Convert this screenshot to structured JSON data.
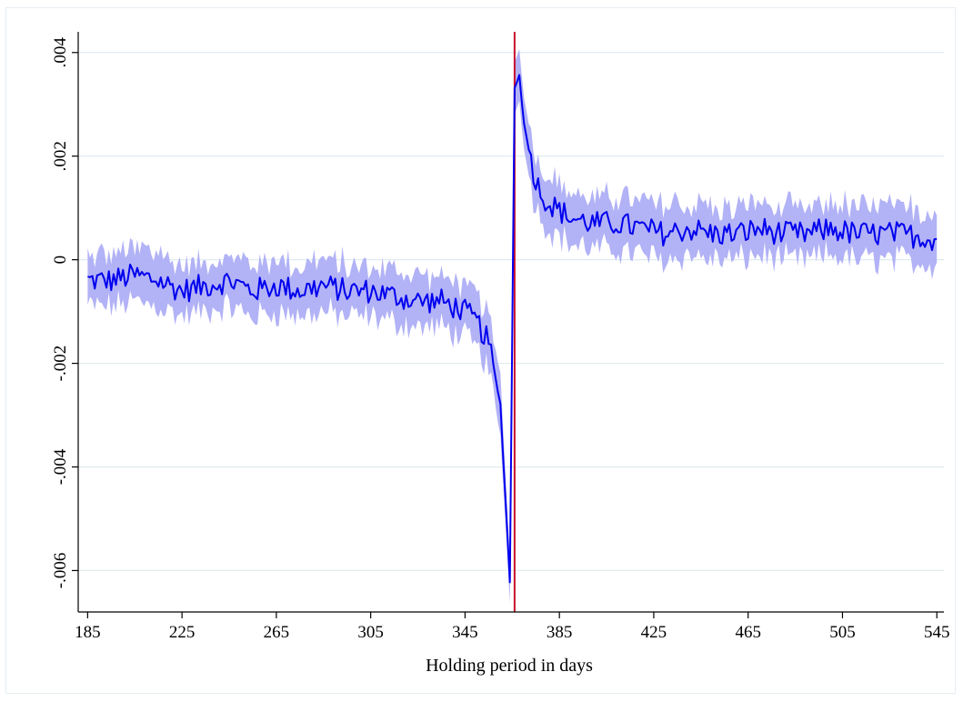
{
  "chart_data": {
    "type": "line",
    "title": "",
    "xlabel": "Holding period in days",
    "ylabel": "",
    "xlim": [
      181,
      548
    ],
    "ylim": [
      -0.0068,
      0.0044
    ],
    "x_ticks": [
      185,
      225,
      265,
      305,
      345,
      385,
      425,
      465,
      505,
      545
    ],
    "x_tick_labels": [
      "185",
      "225",
      "265",
      "305",
      "345",
      "385",
      "425",
      "465",
      "505",
      "545"
    ],
    "y_ticks": [
      -0.006,
      -0.004,
      -0.002,
      0,
      0.002,
      0.004
    ],
    "y_tick_labels": [
      "-.006",
      "-.004",
      "-.002",
      "0",
      ".002",
      ".004"
    ],
    "grid": "horizontal",
    "vertical_reference_line": 366,
    "colors": {
      "line": "#0000ee",
      "ci_band": "#aaaaf5",
      "reference_line": "#c8102e",
      "grid": "#e0ecf0"
    },
    "series": [
      {
        "x": [
          185,
          195,
          205,
          215,
          225,
          235,
          245,
          255,
          265,
          275,
          285,
          295,
          305,
          315,
          325,
          335,
          345,
          350,
          355,
          360,
          364,
          366,
          368,
          370,
          375,
          380,
          390,
          400,
          410,
          420,
          430,
          440,
          450,
          460,
          470,
          480,
          490,
          500,
          510,
          520,
          530,
          545
        ],
        "y": [
          -0.0004,
          -0.0004,
          -0.0003,
          -0.0004,
          -0.0006,
          -0.0005,
          -0.0004,
          -0.0006,
          -0.0005,
          -0.0006,
          -0.0005,
          -0.0006,
          -0.0006,
          -0.0007,
          -0.0008,
          -0.0008,
          -0.001,
          -0.0012,
          -0.0016,
          -0.0028,
          -0.0062,
          0.0033,
          0.0036,
          0.0026,
          0.0015,
          0.0011,
          0.0008,
          0.0007,
          0.0007,
          0.0006,
          0.0005,
          0.0006,
          0.0005,
          0.0005,
          0.0006,
          0.0005,
          0.0005,
          0.0006,
          0.0005,
          0.0005,
          0.0005,
          0.0004
        ],
        "ci_lower": [
          -0.0009,
          -0.0009,
          -0.0008,
          -0.0009,
          -0.0011,
          -0.001,
          -0.0009,
          -0.0011,
          -0.001,
          -0.0011,
          -0.001,
          -0.0011,
          -0.0011,
          -0.0012,
          -0.0013,
          -0.0013,
          -0.0015,
          -0.0017,
          -0.0021,
          -0.0034,
          -0.0066,
          0.0028,
          0.0031,
          0.0021,
          0.001,
          0.0006,
          0.0003,
          0.0002,
          0.0002,
          0.0001,
          0.0,
          0.0001,
          0.0,
          0.0,
          0.0001,
          0.0,
          0.0,
          0.0001,
          0.0,
          0.0,
          0.0,
          -0.0001
        ],
        "ci_upper": [
          0.0001,
          0.0001,
          0.0002,
          0.0001,
          -0.0001,
          0.0,
          0.0001,
          -0.0001,
          0.0,
          -0.0001,
          0.0,
          -0.0001,
          -0.0001,
          -0.0002,
          -0.0003,
          -0.0003,
          -0.0005,
          -0.0007,
          -0.0011,
          -0.0022,
          -0.0058,
          0.0038,
          0.0041,
          0.0031,
          0.002,
          0.0016,
          0.0013,
          0.0012,
          0.0012,
          0.0011,
          0.001,
          0.0011,
          0.001,
          0.001,
          0.0011,
          0.001,
          0.001,
          0.0011,
          0.001,
          0.001,
          0.001,
          0.0009
        ]
      }
    ]
  }
}
